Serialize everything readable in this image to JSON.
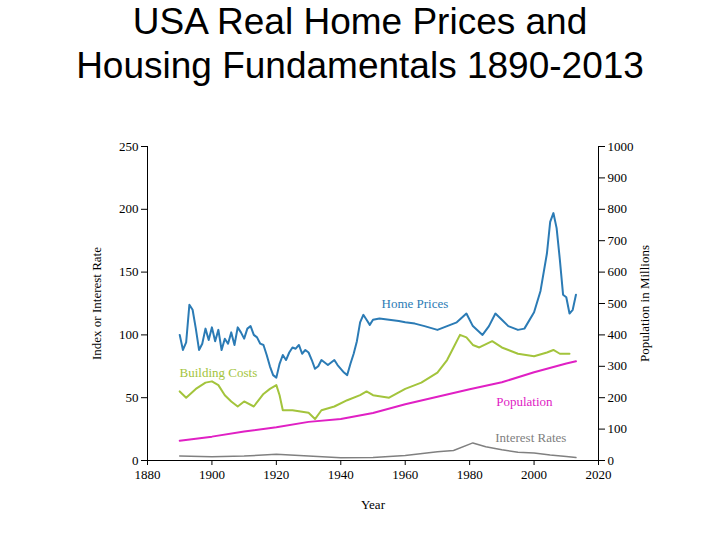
{
  "chart_data": {
    "type": "line",
    "title": "USA Real Home Prices and Housing Fundamentals 1890-2013",
    "x_label": "Year",
    "y_label": "Index or Interest Rate",
    "y2_label": "Population in Millions",
    "xlim": [
      1880,
      2020
    ],
    "xticks": [
      1880,
      1900,
      1920,
      1940,
      1960,
      1980,
      2000,
      2020
    ],
    "ylim": [
      0,
      250
    ],
    "yticks": [
      0,
      50,
      100,
      150,
      200,
      250
    ],
    "y2lim": [
      0,
      1000
    ],
    "y2ticks": [
      0,
      100,
      200,
      300,
      400,
      500,
      600,
      700,
      800,
      900,
      1000
    ],
    "grid": false,
    "series": [
      {
        "name": "Home Prices",
        "color": "#2b7bb5",
        "axis": "y",
        "label_at": [
          1963,
          125
        ],
        "x": [
          1890,
          1891,
          1892,
          1893,
          1894,
          1895,
          1896,
          1897,
          1898,
          1899,
          1900,
          1901,
          1902,
          1903,
          1904,
          1905,
          1906,
          1907,
          1908,
          1909,
          1910,
          1911,
          1912,
          1913,
          1914,
          1915,
          1916,
          1917,
          1918,
          1919,
          1920,
          1921,
          1922,
          1923,
          1924,
          1925,
          1926,
          1927,
          1928,
          1929,
          1930,
          1931,
          1932,
          1933,
          1934,
          1935,
          1936,
          1937,
          1938,
          1939,
          1940,
          1941,
          1942,
          1943,
          1944,
          1945,
          1946,
          1947,
          1948,
          1949,
          1950,
          1952,
          1955,
          1958,
          1960,
          1963,
          1966,
          1970,
          1973,
          1976,
          1979,
          1981,
          1984,
          1986,
          1988,
          1990,
          1992,
          1995,
          1997,
          2000,
          2002,
          2004,
          2005,
          2006,
          2007,
          2008,
          2009,
          2010,
          2011,
          2012,
          2013
        ],
        "values": [
          100,
          88,
          94,
          124,
          120,
          105,
          88,
          93,
          105,
          96,
          106,
          95,
          104,
          88,
          97,
          93,
          102,
          92,
          106,
          102,
          97,
          105,
          107,
          100,
          98,
          93,
          92,
          84,
          75,
          68,
          66,
          77,
          84,
          80,
          86,
          90,
          89,
          92,
          85,
          88,
          86,
          80,
          73,
          75,
          80,
          78,
          76,
          78,
          80,
          76,
          73,
          70,
          68,
          77,
          85,
          95,
          110,
          116,
          112,
          108,
          112,
          113,
          112,
          111,
          110,
          109,
          107,
          104,
          107,
          110,
          117,
          107,
          100,
          107,
          117,
          112,
          107,
          104,
          105,
          118,
          135,
          165,
          190,
          197,
          185,
          160,
          132,
          130,
          117,
          120,
          132
        ]
      },
      {
        "name": "Building Costs",
        "color": "#a3c43c",
        "axis": "y",
        "label_at": [
          1902,
          70
        ],
        "x": [
          1890,
          1892,
          1895,
          1898,
          1900,
          1902,
          1904,
          1906,
          1908,
          1910,
          1913,
          1916,
          1918,
          1920,
          1921,
          1922,
          1925,
          1930,
          1932,
          1934,
          1938,
          1942,
          1946,
          1948,
          1950,
          1955,
          1960,
          1965,
          1970,
          1973,
          1975,
          1977,
          1979,
          1981,
          1983,
          1987,
          1990,
          1995,
          2000,
          2004,
          2006,
          2008,
          2011
        ],
        "values": [
          55,
          50,
          57,
          62,
          63,
          60,
          52,
          47,
          43,
          47,
          43,
          53,
          57,
          60,
          52,
          40,
          40,
          38,
          33,
          40,
          43,
          48,
          52,
          55,
          52,
          50,
          57,
          62,
          70,
          80,
          90,
          100,
          98,
          92,
          90,
          95,
          90,
          85,
          83,
          86,
          88,
          85,
          85
        ]
      },
      {
        "name": "Population",
        "color": "#e020c4",
        "axis": "y2",
        "label_at": [
          1997,
          188
        ],
        "x": [
          1890,
          1900,
          1910,
          1920,
          1930,
          1940,
          1950,
          1960,
          1970,
          1980,
          1990,
          2000,
          2010,
          2013
        ],
        "values": [
          63,
          76,
          92,
          106,
          123,
          132,
          151,
          179,
          203,
          227,
          249,
          281,
          309,
          316
        ]
      },
      {
        "name": "Interest Rates",
        "color": "#808080",
        "axis": "y",
        "label_at": [
          1999,
          18
        ],
        "x": [
          1890,
          1900,
          1910,
          1920,
          1930,
          1940,
          1950,
          1960,
          1970,
          1975,
          1981,
          1985,
          1990,
          1995,
          2000,
          2005,
          2010,
          2013
        ],
        "values": [
          3.5,
          3,
          3.5,
          5,
          3.5,
          2.2,
          2.3,
          4,
          7,
          8,
          14,
          11,
          8.5,
          6.5,
          6,
          4.3,
          3.2,
          2.3
        ]
      }
    ]
  }
}
